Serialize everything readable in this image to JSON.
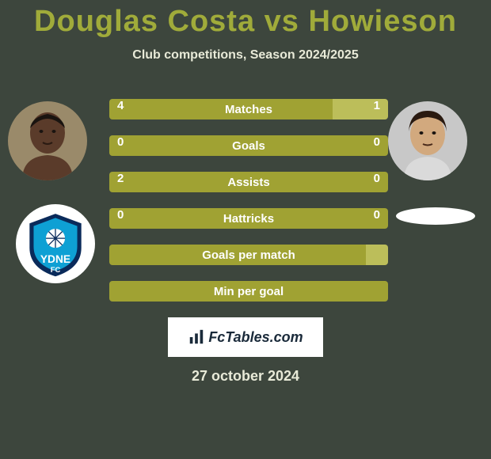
{
  "background_color": "#3d463d",
  "title": "Douglas Costa vs Howieson",
  "title_color": "#a0ab3a",
  "subtitle": "Club competitions, Season 2024/2025",
  "subtitle_color": "#e8ead8",
  "date": "27 october 2024",
  "date_color": "#e8ead8",
  "bar_colors": {
    "player1_fill": "#a0a233",
    "player2_fill": "#bcbe5a",
    "empty_fill": "#a0a233",
    "text": "#ffffff"
  },
  "avatars": {
    "left": {
      "name": "douglas-costa-avatar",
      "skin": "#5a3b2a",
      "bg": "#9a8a6a"
    },
    "right": {
      "name": "howieson-avatar",
      "skin": "#d2a97e",
      "bg": "#c8c8c8"
    }
  },
  "club_left": {
    "name": "sydney-fc-badge",
    "text": "YDNE",
    "text2": "FC",
    "primary": "#0ea0d4",
    "secondary": "#0a2a5a"
  },
  "stats": [
    {
      "label": "Matches",
      "p1": "4",
      "p2": "1",
      "p1_pct": 80,
      "p2_pct": 20
    },
    {
      "label": "Goals",
      "p1": "0",
      "p2": "0",
      "p1_pct": 100,
      "p2_pct": 0
    },
    {
      "label": "Assists",
      "p1": "2",
      "p2": "0",
      "p1_pct": 100,
      "p2_pct": 0
    },
    {
      "label": "Hattricks",
      "p1": "0",
      "p2": "0",
      "p1_pct": 100,
      "p2_pct": 0
    },
    {
      "label": "Goals per match",
      "p1": "",
      "p2": "",
      "p1_pct": 92,
      "p2_pct": 8
    },
    {
      "label": "Min per goal",
      "p1": "",
      "p2": "",
      "p1_pct": 100,
      "p2_pct": 0
    }
  ],
  "fctables_label": "FcTables.com",
  "fctables_text_color": "#1a2a3a"
}
